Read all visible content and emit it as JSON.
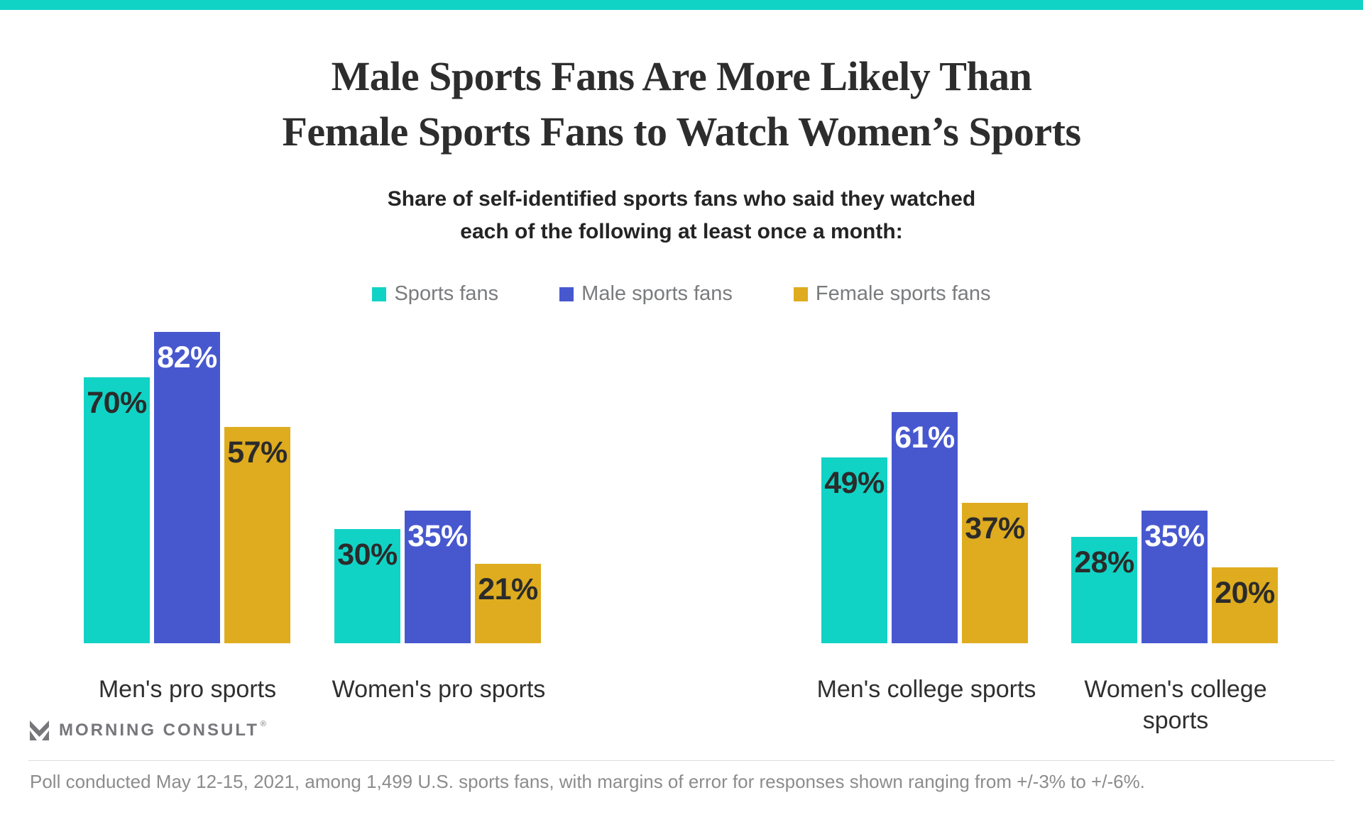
{
  "page": {
    "accent_color": "#11d3c5"
  },
  "title": {
    "line1": "Male Sports Fans Are More Likely Than",
    "line2": "Female Sports Fans to Watch Women’s Sports"
  },
  "subtitle": {
    "line1": "Share of self-identified sports fans who said they watched",
    "line2": "each of the following at least once a month:"
  },
  "chart_data": {
    "type": "bar",
    "categories": [
      "Men's pro sports",
      "Women's pro sports",
      "Men's college sports",
      "Women's college sports"
    ],
    "series": [
      {
        "name": "Sports fans",
        "color": "#11d3c5",
        "label_color": "#2b2b2b",
        "values": [
          70,
          30,
          49,
          28
        ]
      },
      {
        "name": "Male sports fans",
        "color": "#4758cf",
        "label_color": "#ffffff",
        "values": [
          82,
          35,
          61,
          35
        ]
      },
      {
        "name": "Female sports fans",
        "color": "#dfac1f",
        "label_color": "#2b2b2b",
        "values": [
          57,
          21,
          37,
          20
        ]
      }
    ],
    "value_suffix": "%",
    "ylim": [
      0,
      100
    ],
    "grid": false,
    "legend_position": "top",
    "value_labels": "inside-top"
  },
  "footer": {
    "logo_text": "MORNING CONSULT",
    "registered_mark": "®",
    "note": "Poll conducted May 12-15, 2021, among 1,499 U.S. sports fans, with margins of error for responses shown ranging from +/-3% to +/-6%."
  }
}
